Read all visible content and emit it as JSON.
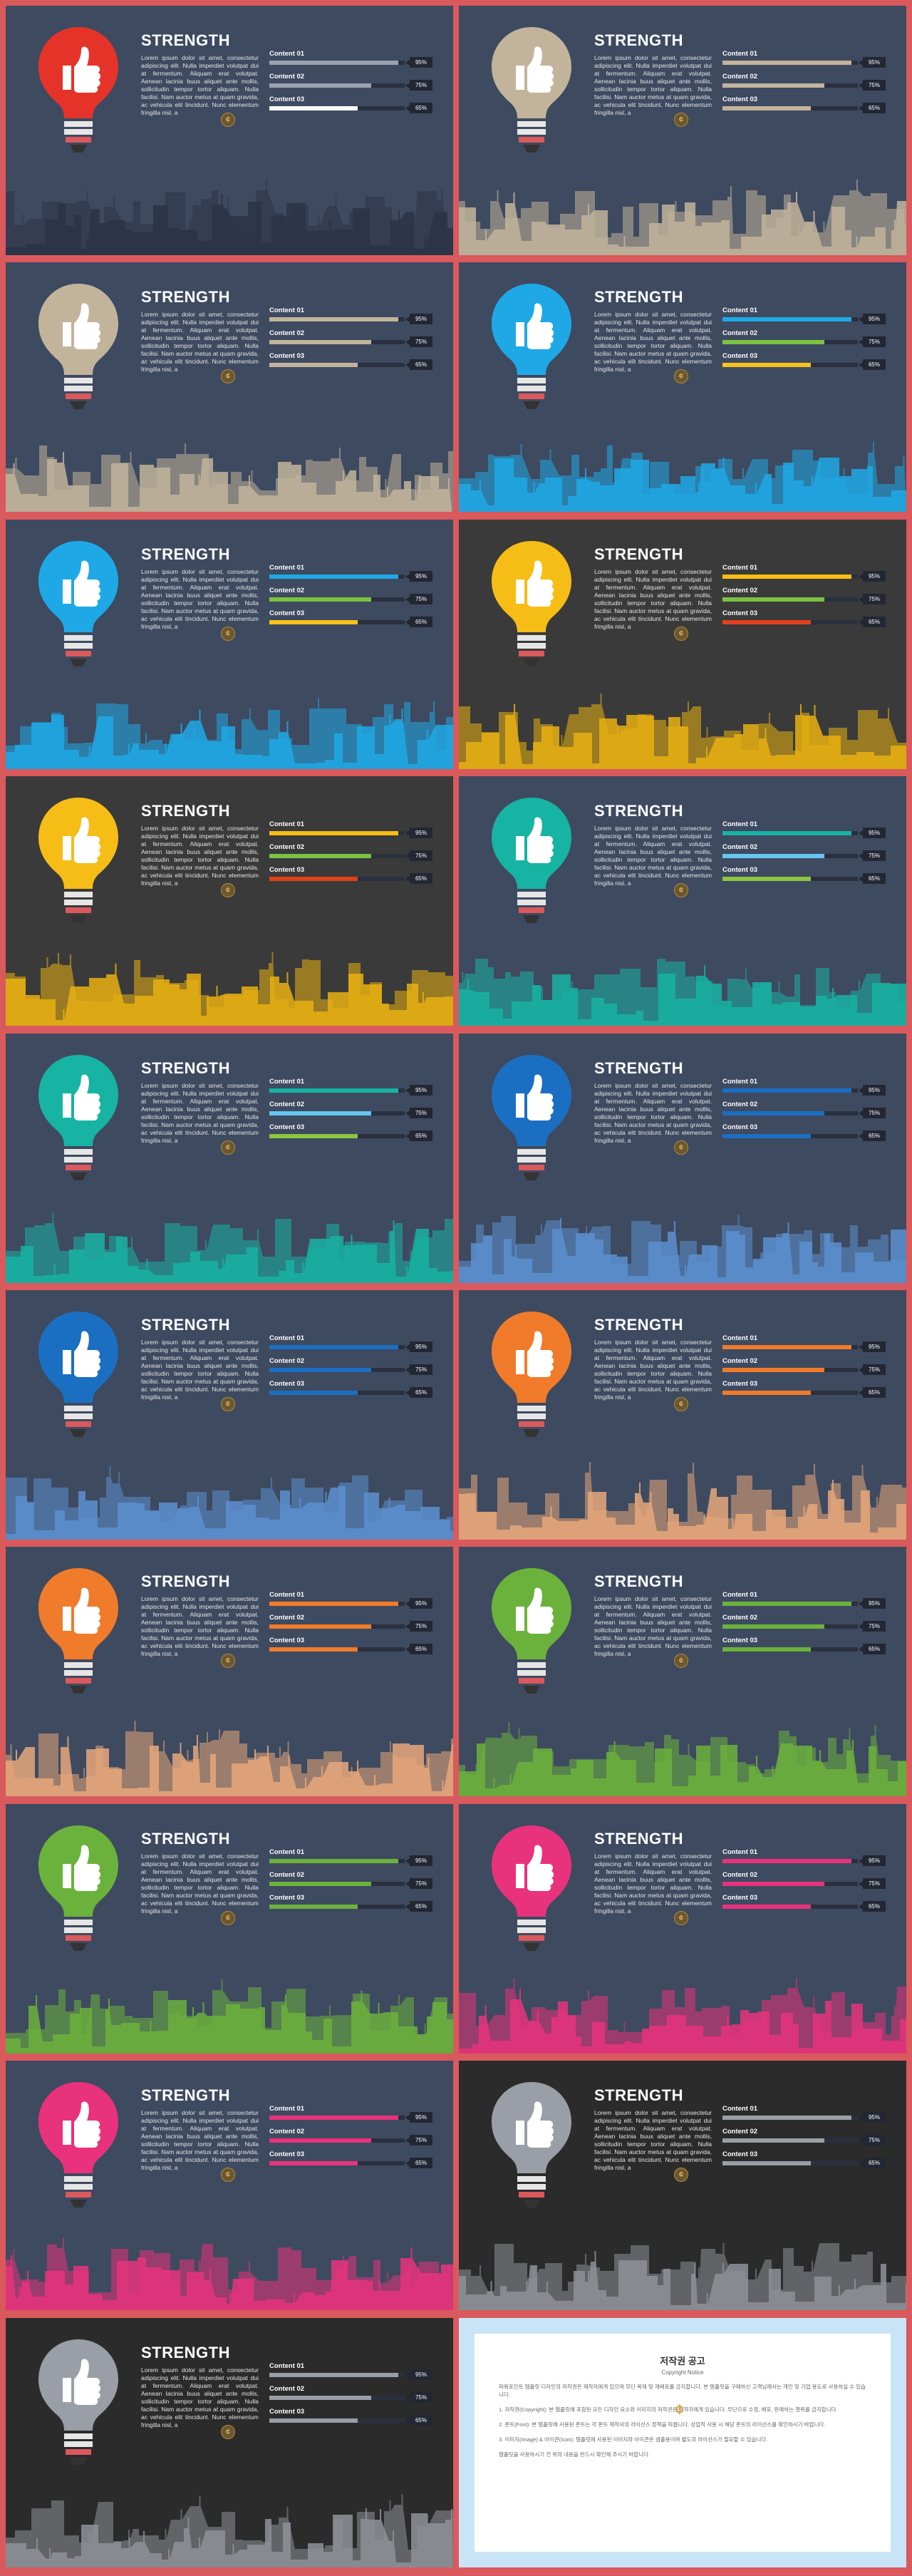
{
  "slide_text": {
    "title": "STRENGTH",
    "body": "Lorem ipsum dolor sit amet, consectetur adipiscing elit. Nulla imperdiet volutpat dui at fermentum. Aliquam erat volutpat. Aenean lacinia buus aliquet ante mollis, sollicitudin tempor tortor aliquam. Nulla facilisi. Nam auctor metus at quam gravida, ac vehicula elit tincidunt. Nunc elementum fringilla nisl, a",
    "bars": [
      {
        "label": "Content 01",
        "percent": "95%",
        "value": 0.95
      },
      {
        "label": "Content 02",
        "percent": "75%",
        "value": 0.75
      },
      {
        "label": "Content 03",
        "percent": "65%",
        "value": 0.65
      }
    ]
  },
  "slides": [
    {
      "bg": "#3e4a60",
      "bulb": "#e6332a",
      "skyline": "#2b3345",
      "bars": [
        "#9aa1b0",
        "#9aa1b0",
        "#ffffff"
      ]
    },
    {
      "bg": "#3e4a60",
      "bulb": "#c2b49b",
      "skyline": "#c2b49b",
      "bars": [
        "#c2b49b",
        "#c2b49b",
        "#c2b49b"
      ]
    },
    {
      "bg": "#3e4a60",
      "bulb": "#c2b49b",
      "skyline": "#c2b49b",
      "bars": [
        "#c2b49b",
        "#c2b49b",
        "#c2b49b"
      ]
    },
    {
      "bg": "#3e4a60",
      "bulb": "#1ea9e6",
      "skyline": "#1ea9e6",
      "bars": [
        "#1ea9e6",
        "#7cc242",
        "#f7c21b"
      ]
    },
    {
      "bg": "#3e4a60",
      "bulb": "#1ea9e6",
      "skyline": "#1ea9e6",
      "bars": [
        "#1ea9e6",
        "#7cc242",
        "#f7c21b"
      ]
    },
    {
      "bg": "#3a3a3a",
      "bulb": "#f6bd16",
      "skyline": "#e8b010",
      "bars": [
        "#f6bd16",
        "#7cc242",
        "#e2401c"
      ]
    },
    {
      "bg": "#3a3a3a",
      "bulb": "#f6bd16",
      "skyline": "#e8b010",
      "bars": [
        "#f6bd16",
        "#7cc242",
        "#e2401c"
      ]
    },
    {
      "bg": "#3e4a60",
      "bulb": "#17b3a3",
      "skyline": "#17b3a3",
      "bars": [
        "#17b3a3",
        "#66c7f0",
        "#8dc63f"
      ]
    },
    {
      "bg": "#3e4a60",
      "bulb": "#17b3a3",
      "skyline": "#17b3a3",
      "bars": [
        "#17b3a3",
        "#66c7f0",
        "#8dc63f"
      ]
    },
    {
      "bg": "#3e4a60",
      "bulb": "#1b6fc2",
      "skyline": "#5b8fd0",
      "bars": [
        "#1b6fc2",
        "#1b6fc2",
        "#1b6fc2"
      ]
    },
    {
      "bg": "#3e4a60",
      "bulb": "#1b6fc2",
      "skyline": "#5b8fd0",
      "bars": [
        "#1b6fc2",
        "#1b6fc2",
        "#1b6fc2"
      ]
    },
    {
      "bg": "#3e4a60",
      "bulb": "#f07b2a",
      "skyline": "#e8a77a",
      "bars": [
        "#f07b2a",
        "#f07b2a",
        "#f07b2a"
      ]
    },
    {
      "bg": "#3e4a60",
      "bulb": "#f07b2a",
      "skyline": "#e8a77a",
      "bars": [
        "#f07b2a",
        "#f07b2a",
        "#f07b2a"
      ]
    },
    {
      "bg": "#3e4a60",
      "bulb": "#6bb23c",
      "skyline": "#6bb23c",
      "bars": [
        "#6bb23c",
        "#6bb23c",
        "#6bb23c"
      ]
    },
    {
      "bg": "#3e4a60",
      "bulb": "#6bb23c",
      "skyline": "#6bb23c",
      "bars": [
        "#6bb23c",
        "#6bb23c",
        "#6bb23c"
      ]
    },
    {
      "bg": "#3e4a60",
      "bulb": "#e8327c",
      "skyline": "#e8327c",
      "bars": [
        "#e8327c",
        "#e8327c",
        "#e8327c"
      ]
    },
    {
      "bg": "#3e4a60",
      "bulb": "#e8327c",
      "skyline": "#e8327c",
      "bars": [
        "#e8327c",
        "#e8327c",
        "#e8327c"
      ]
    },
    {
      "bg": "#2b2b2b",
      "bulb": "#9a9ea6",
      "skyline": "#8e9299",
      "bars": [
        "#9a9ea6",
        "#9a9ea6",
        "#9a9ea6"
      ]
    },
    {
      "bg": "#2b2b2b",
      "bulb": "#9a9ea6",
      "skyline": "#8e9299",
      "bars": [
        "#9a9ea6",
        "#9a9ea6",
        "#9a9ea6"
      ]
    }
  ],
  "copyright": {
    "title": "저작권 공고",
    "subtitle": "Copyright Notice",
    "paragraphs": [
      "파워포인트 템플릿 디자인의 저작권은 제작자에게 있으며 무단 복제 및 재배포를 금지합니다. 본 템플릿을 구매하신 고객님께서는 개인 및 기업 용도로 사용하실 수 있습니다.",
      "1. 저작권(Copyright): 본 템플릿에 포함된 모든 디자인 요소와 이미지의 저작권은 제작자에게 있습니다. 무단으로 수정, 배포, 판매하는 행위를 금지합니다.",
      "2. 폰트(Font): 본 템플릿에 사용된 폰트는 각 폰트 제작사의 라이선스 정책을 따릅니다. 상업적 사용 시 해당 폰트의 라이선스를 확인하시기 바랍니다.",
      "3. 이미지(Image) & 아이콘(Icon): 템플릿에 사용된 이미지와 아이콘은 샘플용이며 별도의 라이선스가 필요할 수 있습니다.",
      "템플릿을 사용하시기 전 위의 내용을 반드시 확인해 주시기 바랍니다."
    ]
  }
}
